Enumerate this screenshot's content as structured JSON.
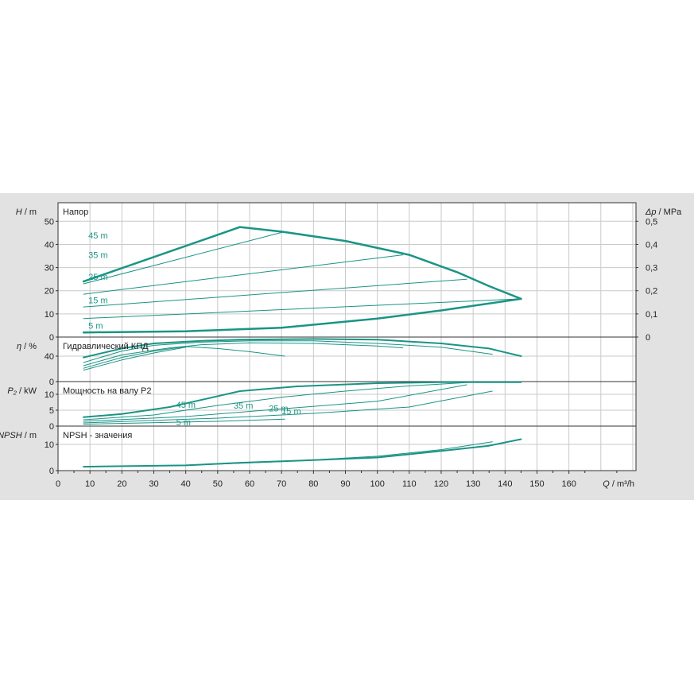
{
  "chart_data": [
    {
      "type": "line",
      "title": "Напор",
      "ylabel_left": "H / m",
      "ylabel_right": "Δp / MPa",
      "ylim": [
        0,
        58
      ],
      "yticks": [
        0,
        10,
        20,
        30,
        40,
        50
      ],
      "yticks_right": [
        "0",
        "0,1",
        "0,2",
        "0,3",
        "0,4",
        "0,5"
      ],
      "series": [
        {
          "name": "",
          "points": [
            [
              8,
              24
            ],
            [
              57,
              47.5
            ],
            [
              70,
              45.5
            ],
            [
              90,
              41.5
            ],
            [
              110,
              35.5
            ],
            [
              125,
              28
            ],
            [
              135,
              22
            ],
            [
              145,
              16.5
            ]
          ],
          "width": 2.5
        },
        {
          "name": "",
          "points": [
            [
              8,
              2
            ],
            [
              40,
              2.5
            ],
            [
              70,
              4
            ],
            [
              100,
              8
            ],
            [
              120,
              11.5
            ],
            [
              145,
              16.5
            ]
          ],
          "width": 2.5
        },
        {
          "name": "",
          "points": [
            [
              8,
              23
            ],
            [
              71,
              45.5
            ]
          ],
          "width": 1
        },
        {
          "name": "",
          "points": [
            [
              8,
              18.5
            ],
            [
              108,
              35.5
            ]
          ],
          "width": 1
        },
        {
          "name": "",
          "points": [
            [
              8,
              13
            ],
            [
              128,
              25
            ]
          ],
          "width": 1
        },
        {
          "name": "",
          "points": [
            [
              8,
              8
            ],
            [
              145,
              16.5
            ]
          ],
          "width": 1
        }
      ],
      "annotations": [
        "45 m",
        "35 m",
        "25 m",
        "15 m",
        "5 m"
      ]
    },
    {
      "type": "line",
      "title": "Гидравлический КПД",
      "ylabel_left": "η / %",
      "ylim": [
        0,
        70
      ],
      "yticks": [
        0,
        40
      ],
      "series": [
        {
          "name": "",
          "points": [
            [
              8,
              38
            ],
            [
              20,
              52
            ],
            [
              30,
              60
            ],
            [
              45,
              64
            ],
            [
              57,
              66
            ],
            [
              80,
              67
            ],
            [
              100,
              66
            ],
            [
              120,
              60
            ],
            [
              135,
              52
            ],
            [
              145,
              40
            ]
          ],
          "width": 2
        },
        {
          "name": "",
          "points": [
            [
              8,
              30
            ],
            [
              20,
              48
            ],
            [
              30,
              57
            ],
            [
              45,
              62
            ],
            [
              60,
              64
            ],
            [
              80,
              64
            ],
            [
              100,
              60
            ],
            [
              120,
              54
            ],
            [
              136,
              43
            ]
          ],
          "width": 1
        },
        {
          "name": "",
          "points": [
            [
              8,
              25
            ],
            [
              20,
              42
            ],
            [
              35,
              53
            ],
            [
              45,
              58
            ],
            [
              60,
              61
            ],
            [
              80,
              60
            ],
            [
              100,
              56
            ],
            [
              108,
              53
            ]
          ],
          "width": 1
        },
        {
          "name": "",
          "points": [
            [
              8,
              21
            ],
            [
              20,
              38
            ],
            [
              30,
              48
            ],
            [
              40,
              55
            ],
            [
              50,
              52
            ],
            [
              60,
              47
            ],
            [
              71,
              40
            ]
          ],
          "width": 1
        },
        {
          "name": "",
          "points": [
            [
              8,
              18
            ],
            [
              20,
              34
            ],
            [
              30,
              45
            ],
            [
              40,
              54
            ]
          ],
          "width": 1
        }
      ]
    },
    {
      "type": "line",
      "title": "Мощность на валу P2",
      "ylabel_left": "P₂ / kW",
      "ylim": [
        0,
        14
      ],
      "yticks": [
        0,
        5,
        10
      ],
      "series": [
        {
          "name": "",
          "points": [
            [
              8,
              2.8
            ],
            [
              20,
              3.8
            ],
            [
              35,
              6
            ],
            [
              57,
              11
            ],
            [
              75,
              12.5
            ],
            [
              100,
              13.5
            ],
            [
              120,
              13.8
            ],
            [
              145,
              13.8
            ]
          ],
          "width": 2
        },
        {
          "name": "",
          "points": [
            [
              8,
              2
            ],
            [
              30,
              3.5
            ],
            [
              50,
              6.5
            ],
            [
              71,
              9.2
            ],
            [
              90,
              11
            ],
            [
              108,
              12.5
            ],
            [
              130,
              13.8
            ]
          ],
          "width": 1
        },
        {
          "name": "",
          "points": [
            [
              8,
              1.5
            ],
            [
              40,
              3
            ],
            [
              71,
              5.5
            ],
            [
              100,
              7.8
            ],
            [
              128,
              13
            ]
          ],
          "width": 1
        },
        {
          "name": "",
          "points": [
            [
              8,
              1
            ],
            [
              50,
              2.5
            ],
            [
              80,
              4
            ],
            [
              110,
              6
            ],
            [
              136,
              11
            ]
          ],
          "width": 1
        },
        {
          "name": "",
          "points": [
            [
              8,
              0.6
            ],
            [
              50,
              1.5
            ],
            [
              71,
              2.2
            ]
          ],
          "width": 1
        }
      ],
      "annotations": [
        "45 m",
        "35 m",
        "25 m",
        "15 m",
        "5 m"
      ]
    },
    {
      "type": "line",
      "title": "NPSH - значения",
      "ylabel_left": "NPSH / m",
      "ylim": [
        0,
        17
      ],
      "yticks": [
        0,
        10
      ],
      "series": [
        {
          "name": "",
          "points": [
            [
              8,
              1.5
            ],
            [
              40,
              2
            ],
            [
              57,
              3
            ],
            [
              80,
              4
            ],
            [
              100,
              5
            ],
            [
              120,
              7.5
            ],
            [
              135,
              9.5
            ],
            [
              145,
              12
            ]
          ],
          "width": 2
        },
        {
          "name": "",
          "points": [
            [
              8,
              1.5
            ],
            [
              40,
              2
            ],
            [
              71,
              3.5
            ],
            [
              100,
              5.5
            ],
            [
              120,
              8
            ],
            [
              136,
              11
            ]
          ],
          "width": 1
        }
      ]
    }
  ],
  "x_axis": {
    "label": "Q / m³/h",
    "xlim": [
      0,
      181
    ],
    "ticks": [
      0,
      10,
      20,
      30,
      40,
      50,
      60,
      70,
      80,
      90,
      100,
      110,
      120,
      130,
      140,
      150,
      160
    ]
  },
  "colors": {
    "background": "#e2e2e2",
    "plot_area": "#ffffff",
    "curve": "#1a9485",
    "grid": "#c9c9c9"
  }
}
